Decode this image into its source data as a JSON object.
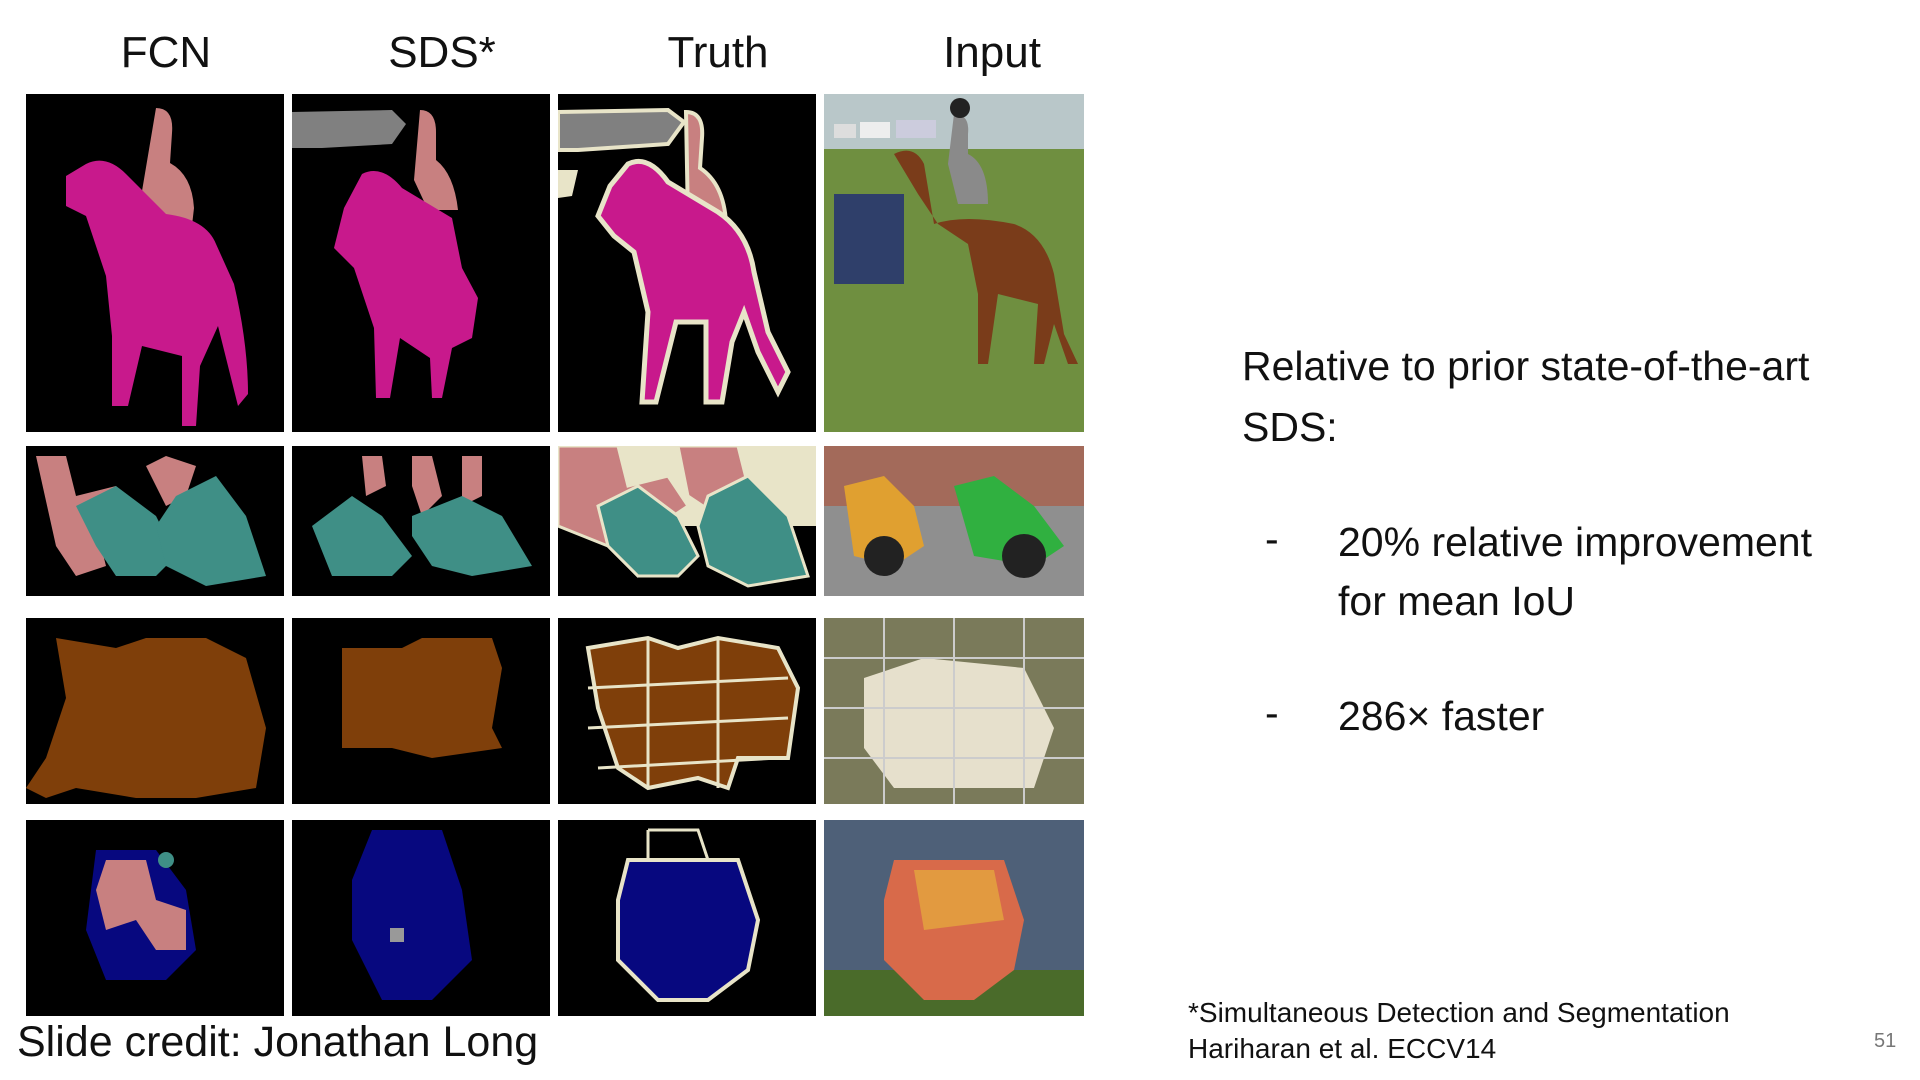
{
  "columns": [
    "FCN",
    "SDS*",
    "Truth",
    "Input"
  ],
  "text": {
    "heading_line1": "Relative to prior state-of-the-art",
    "heading_line2": "SDS:",
    "bullet_dash": "-",
    "bullet1_line1": "20% relative improvement",
    "bullet1_line2": "for mean IoU",
    "bullet2": "286× faster"
  },
  "credit": "Slide credit: Jonathan Long",
  "reference_line1": "*Simultaneous Detection and Segmentation",
  "reference_line2": "Hariharan et al. ECCV14",
  "page_number": "51",
  "colors": {
    "horse": "#c8198c",
    "person": "#c88080",
    "motorbike": "#3f8f86",
    "sheep": "#7f3f0a",
    "boat": "#07087f",
    "car": "#808080",
    "void": "#e8e4c8"
  }
}
